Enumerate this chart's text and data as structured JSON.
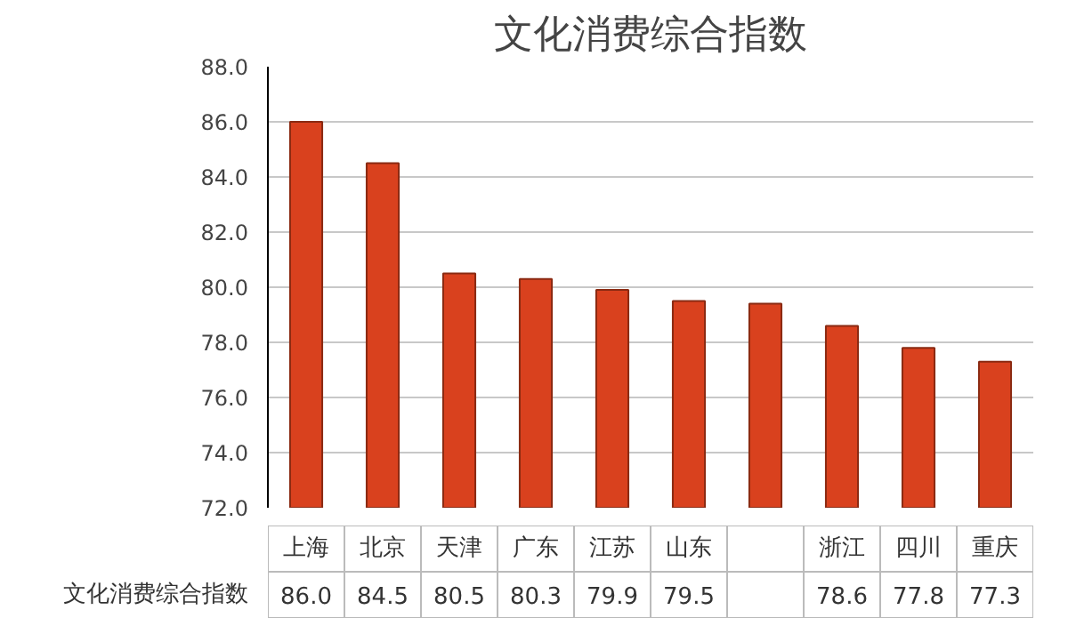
{
  "chart_data": {
    "type": "bar",
    "title": "文化消费综合指数",
    "categories": [
      "上海",
      "北京",
      "天津",
      "广东",
      "江苏",
      "山东",
      null,
      "浙江",
      "四川",
      "重庆"
    ],
    "series": [
      {
        "name": "文化消费综合指数",
        "color": "#d9411e",
        "values": [
          86.0,
          84.5,
          80.5,
          80.3,
          79.9,
          79.5,
          79.4,
          78.6,
          77.8,
          77.3
        ],
        "value_labels": [
          "86.0",
          "84.5",
          "80.5",
          "80.3",
          "79.9",
          "79.5",
          null,
          "78.6",
          "77.8",
          "77.3"
        ]
      }
    ],
    "ylim": [
      72,
      88
    ],
    "yticks": [
      {
        "value": 72,
        "label": "72.0"
      },
      {
        "value": 74,
        "label": "74.0"
      },
      {
        "value": 76,
        "label": "76.0"
      },
      {
        "value": 78,
        "label": "78.0"
      },
      {
        "value": 80,
        "label": "80.0"
      },
      {
        "value": 82,
        "label": "82.0"
      },
      {
        "value": 84,
        "label": "84.0"
      },
      {
        "value": 86,
        "label": "86.0"
      },
      {
        "value": 88,
        "label": "88.0"
      }
    ],
    "grid": "y"
  }
}
